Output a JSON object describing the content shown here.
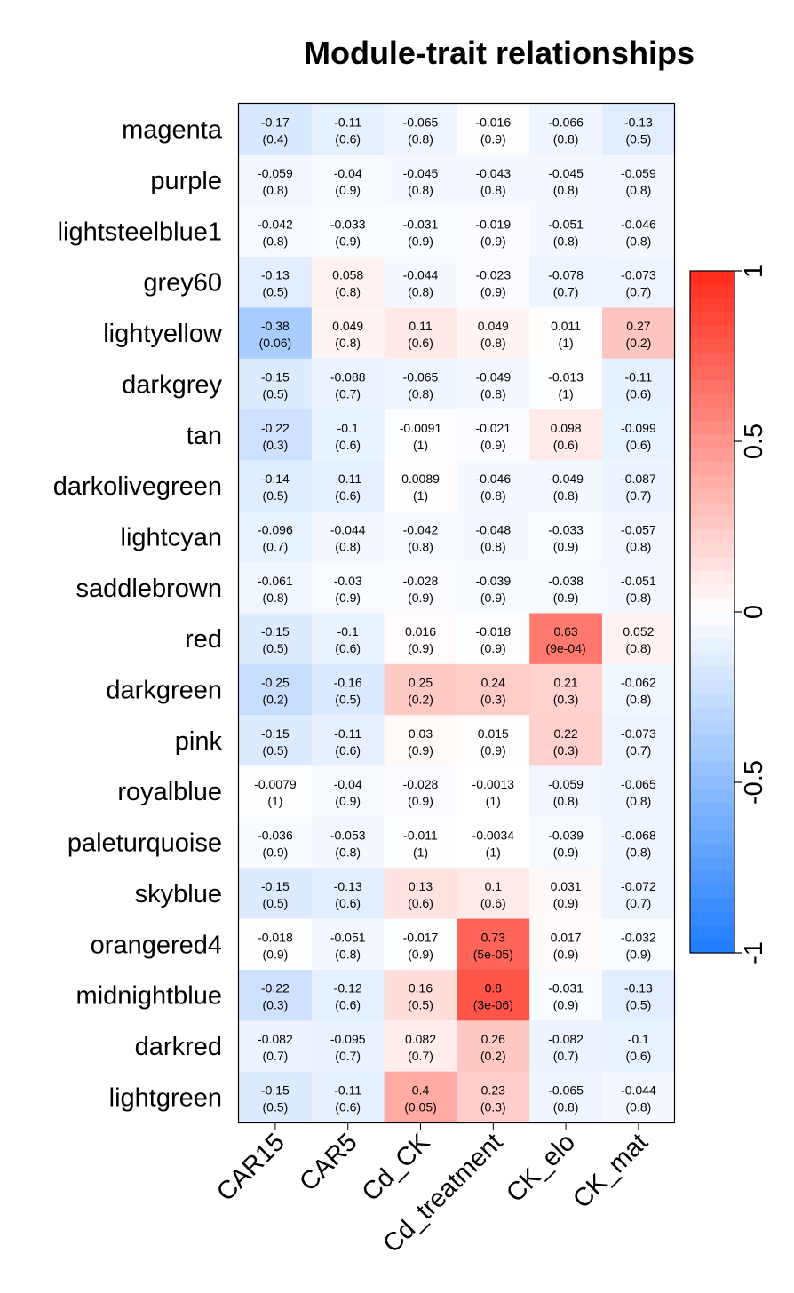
{
  "chart_data": {
    "type": "heatmap",
    "title": "Module-trait relationships",
    "rows": [
      "magenta",
      "purple",
      "lightsteelblue1",
      "grey60",
      "lightyellow",
      "darkgrey",
      "tan",
      "darkolivegreen",
      "lightcyan",
      "saddlebrown",
      "red",
      "darkgreen",
      "pink",
      "royalblue",
      "paleturquoise",
      "skyblue",
      "orangered4",
      "midnightblue",
      "darkred",
      "lightgreen"
    ],
    "columns": [
      "CAR15",
      "CAR5",
      "Cd_CK",
      "Cd_treatment",
      "CK_elo",
      "CK_mat"
    ],
    "values": [
      [
        -0.17,
        -0.11,
        -0.065,
        -0.016,
        -0.066,
        -0.13
      ],
      [
        -0.059,
        -0.04,
        -0.045,
        -0.043,
        -0.045,
        -0.059
      ],
      [
        -0.042,
        -0.033,
        -0.031,
        -0.019,
        -0.051,
        -0.046
      ],
      [
        -0.13,
        0.058,
        -0.044,
        -0.023,
        -0.078,
        -0.073
      ],
      [
        -0.38,
        0.049,
        0.11,
        0.049,
        0.011,
        0.27
      ],
      [
        -0.15,
        -0.088,
        -0.065,
        -0.049,
        -0.013,
        -0.11
      ],
      [
        -0.22,
        -0.1,
        -0.0091,
        -0.021,
        0.098,
        -0.099
      ],
      [
        -0.14,
        -0.11,
        0.0089,
        -0.046,
        -0.049,
        -0.087
      ],
      [
        -0.096,
        -0.044,
        -0.042,
        -0.048,
        -0.033,
        -0.057
      ],
      [
        -0.061,
        -0.03,
        -0.028,
        -0.039,
        -0.038,
        -0.051
      ],
      [
        -0.15,
        -0.1,
        0.016,
        -0.018,
        0.63,
        0.052
      ],
      [
        -0.25,
        -0.16,
        0.25,
        0.24,
        0.21,
        -0.062
      ],
      [
        -0.15,
        -0.11,
        0.03,
        0.015,
        0.22,
        -0.073
      ],
      [
        -0.0079,
        -0.04,
        -0.028,
        -0.0013,
        -0.059,
        -0.065
      ],
      [
        -0.036,
        -0.053,
        -0.011,
        -0.0034,
        -0.039,
        -0.068
      ],
      [
        -0.15,
        -0.13,
        0.13,
        0.1,
        0.031,
        -0.072
      ],
      [
        -0.018,
        -0.051,
        -0.017,
        0.73,
        0.017,
        -0.032
      ],
      [
        -0.22,
        -0.12,
        0.16,
        0.8,
        -0.031,
        -0.13
      ],
      [
        -0.082,
        -0.095,
        0.082,
        0.26,
        -0.082,
        -0.1
      ],
      [
        -0.15,
        -0.11,
        0.4,
        0.23,
        -0.065,
        -0.044
      ]
    ],
    "pvalues": [
      [
        "0.4",
        "0.6",
        "0.8",
        "0.9",
        "0.8",
        "0.5"
      ],
      [
        "0.8",
        "0.9",
        "0.8",
        "0.8",
        "0.8",
        "0.8"
      ],
      [
        "0.8",
        "0.9",
        "0.9",
        "0.9",
        "0.8",
        "0.8"
      ],
      [
        "0.5",
        "0.8",
        "0.8",
        "0.9",
        "0.7",
        "0.7"
      ],
      [
        "0.06",
        "0.8",
        "0.6",
        "0.8",
        "1",
        "0.2"
      ],
      [
        "0.5",
        "0.7",
        "0.8",
        "0.8",
        "1",
        "0.6"
      ],
      [
        "0.3",
        "0.6",
        "1",
        "0.9",
        "0.6",
        "0.6"
      ],
      [
        "0.5",
        "0.6",
        "1",
        "0.8",
        "0.8",
        "0.7"
      ],
      [
        "0.7",
        "0.8",
        "0.8",
        "0.8",
        "0.9",
        "0.8"
      ],
      [
        "0.8",
        "0.9",
        "0.9",
        "0.9",
        "0.9",
        "0.8"
      ],
      [
        "0.5",
        "0.6",
        "0.9",
        "0.9",
        "9e-04",
        "0.8"
      ],
      [
        "0.2",
        "0.5",
        "0.2",
        "0.3",
        "0.3",
        "0.8"
      ],
      [
        "0.5",
        "0.6",
        "0.9",
        "0.9",
        "0.3",
        "0.7"
      ],
      [
        "1",
        "0.9",
        "0.9",
        "1",
        "0.8",
        "0.8"
      ],
      [
        "0.9",
        "0.8",
        "1",
        "1",
        "0.9",
        "0.8"
      ],
      [
        "0.5",
        "0.6",
        "0.6",
        "0.6",
        "0.9",
        "0.7"
      ],
      [
        "0.9",
        "0.8",
        "0.9",
        "5e-05",
        "0.9",
        "0.9"
      ],
      [
        "0.3",
        "0.6",
        "0.5",
        "3e-06",
        "0.9",
        "0.5"
      ],
      [
        "0.7",
        "0.7",
        "0.7",
        "0.2",
        "0.7",
        "0.6"
      ],
      [
        "0.5",
        "0.6",
        "0.05",
        "0.3",
        "0.8",
        "0.8"
      ]
    ],
    "color_scale": {
      "min": -1,
      "max": 1,
      "low_color": "#1e7bff",
      "mid_color": "#ffffff",
      "high_color": "#ff2a1a",
      "ticks": [
        "-1",
        "-0.5",
        "0",
        "0.5",
        "1"
      ]
    }
  }
}
